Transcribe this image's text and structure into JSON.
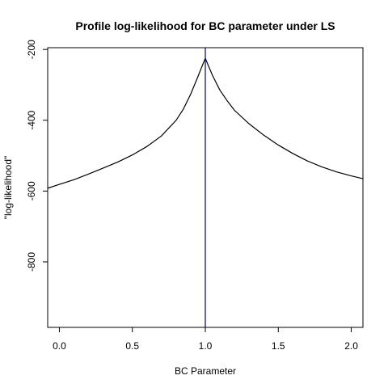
{
  "chart_data": {
    "type": "line",
    "title": "Profile log-likelihood for BC parameter under LS",
    "xlabel": "BC Parameter",
    "ylabel": "\"log-likelihood\"",
    "xlim": [
      -0.08,
      2.08
    ],
    "ylim": [
      -985,
      -195
    ],
    "xticks": [
      0.0,
      0.5,
      1.0,
      1.5,
      2.0
    ],
    "xtick_labels": [
      "0.0",
      "0.5",
      "1.0",
      "1.5",
      "2.0"
    ],
    "yticks": [
      -200,
      -400,
      -600,
      -800
    ],
    "ytick_labels": [
      "-200",
      "-400",
      "-600",
      "-800"
    ],
    "grid": false,
    "legend": "none",
    "line_color": "#000000",
    "vline_color": "#00008b",
    "vline_x": 1.0,
    "series": [
      {
        "x": [
          -0.08,
          0.0,
          0.1,
          0.2,
          0.3,
          0.4,
          0.5,
          0.6,
          0.7,
          0.8,
          0.85,
          0.9,
          0.95,
          0.98,
          1.0,
          1.02,
          1.05,
          1.1,
          1.15,
          1.2,
          1.3,
          1.4,
          1.5,
          1.6,
          1.7,
          1.8,
          1.9,
          2.0,
          2.08
        ],
        "y": [
          -592,
          -581,
          -568,
          -552,
          -535,
          -518,
          -498,
          -474,
          -444,
          -400,
          -368,
          -326,
          -276,
          -245,
          -225,
          -245,
          -274,
          -315,
          -345,
          -372,
          -410,
          -442,
          -470,
          -494,
          -515,
          -532,
          -546,
          -557,
          -565
        ]
      }
    ]
  }
}
